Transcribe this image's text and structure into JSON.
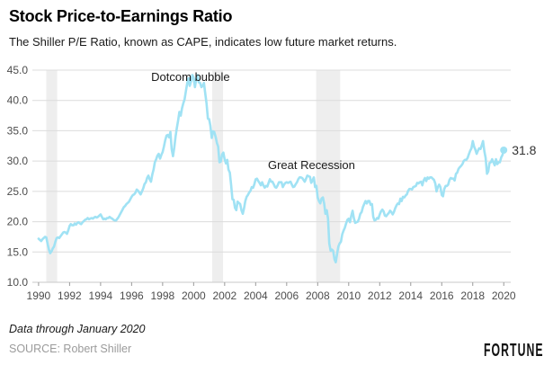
{
  "header": {
    "title": "Stock Price-to-Earnings Ratio",
    "subtitle": "The Shiller P/E Ratio, known as CAPE, indicates low future market returns."
  },
  "footer": {
    "note": "Data through January 2020",
    "source": "SOURCE: Robert Shiller",
    "brand": "FORTUNE"
  },
  "chart_data": {
    "type": "line",
    "title": "Stock Price-to-Earnings Ratio",
    "series_name": "Shiller P/E (CAPE)",
    "xlabel": "",
    "ylabel": "",
    "x_start_year": 1990,
    "x_step_months": 1,
    "x_end_label_value": 31.8,
    "values": [
      17.2,
      17.0,
      16.8,
      17.1,
      17.3,
      17.5,
      17.4,
      16.3,
      15.4,
      14.8,
      15.1,
      15.6,
      15.9,
      16.7,
      17.3,
      17.4,
      17.3,
      17.6,
      17.9,
      18.2,
      18.3,
      18.2,
      18.0,
      18.6,
      19.3,
      19.6,
      19.4,
      19.4,
      19.7,
      19.5,
      19.8,
      19.9,
      19.7,
      19.6,
      19.9,
      20.1,
      20.3,
      20.4,
      20.6,
      20.4,
      20.5,
      20.6,
      20.5,
      20.7,
      20.8,
      20.7,
      20.8,
      21.0,
      21.2,
      20.8,
      20.4,
      20.5,
      20.4,
      20.6,
      20.6,
      20.8,
      20.6,
      20.5,
      20.3,
      20.2,
      20.2,
      20.5,
      20.8,
      21.2,
      21.6,
      22.0,
      22.4,
      22.6,
      22.9,
      23.1,
      23.3,
      23.7,
      24.1,
      24.4,
      24.5,
      24.8,
      25.3,
      25.1,
      24.8,
      24.5,
      25.0,
      25.5,
      26.2,
      26.5,
      27.2,
      27.6,
      27.0,
      26.6,
      27.8,
      28.6,
      29.8,
      30.3,
      30.9,
      31.2,
      30.4,
      31.0,
      31.5,
      32.4,
      33.4,
      34.2,
      34.3,
      33.9,
      34.8,
      32.0,
      30.8,
      32.2,
      34.0,
      35.5,
      36.7,
      38.1,
      37.5,
      38.7,
      39.5,
      40.2,
      41.5,
      42.8,
      43.7,
      42.4,
      43.2,
      44.2,
      43.8,
      42.2,
      43.5,
      44.2,
      43.0,
      42.9,
      42.2,
      42.4,
      42.9,
      41.1,
      39.5,
      37.0,
      36.9,
      35.8,
      33.8,
      34.9,
      34.8,
      34.0,
      33.0,
      32.4,
      29.8,
      29.9,
      31.1,
      31.4,
      30.3,
      29.6,
      30.2,
      28.6,
      28.1,
      26.1,
      23.7,
      23.6,
      22.3,
      21.9,
      23.3,
      23.1,
      22.9,
      21.9,
      21.3,
      22.2,
      23.4,
      24.1,
      24.4,
      24.8,
      25.1,
      25.7,
      25.6,
      26.2,
      27.0,
      27.1,
      26.7,
      26.4,
      26.0,
      26.5,
      26.0,
      25.6,
      25.9,
      25.8,
      26.4,
      27.0,
      26.6,
      26.6,
      26.2,
      25.7,
      25.6,
      26.0,
      26.5,
      26.5,
      26.5,
      25.7,
      26.1,
      26.4,
      26.5,
      26.4,
      26.5,
      26.6,
      26.1,
      25.7,
      25.8,
      26.2,
      26.5,
      27.0,
      27.3,
      27.3,
      27.2,
      26.9,
      26.6,
      27.1,
      27.6,
      27.5,
      27.4,
      26.4,
      26.8,
      27.3,
      25.7,
      25.9,
      24.0,
      23.4,
      23.0,
      23.8,
      24.0,
      23.0,
      21.3,
      21.9,
      20.5,
      16.4,
      15.2,
      15.4,
      15.2,
      13.8,
      13.3,
      14.7,
      15.9,
      16.4,
      16.7,
      17.9,
      18.5,
      19.0,
      19.7,
      20.3,
      20.5,
      19.9,
      21.0,
      21.8,
      20.6,
      19.8,
      19.9,
      20.0,
      20.5,
      21.3,
      21.6,
      22.4,
      22.9,
      23.4,
      23.0,
      23.4,
      23.4,
      22.8,
      22.9,
      20.8,
      20.2,
      20.3,
      20.6,
      20.5,
      21.2,
      21.7,
      22.0,
      21.7,
      21.0,
      20.9,
      21.2,
      21.4,
      21.8,
      21.6,
      21.2,
      21.6,
      22.2,
      22.7,
      23.0,
      22.9,
      23.8,
      23.4,
      24.1,
      24.0,
      24.3,
      24.5,
      25.1,
      25.4,
      25.4,
      25.3,
      25.7,
      25.8,
      25.9,
      26.4,
      26.3,
      26.5,
      26.6,
      26.0,
      26.8,
      27.2,
      26.7,
      27.3,
      27.1,
      27.3,
      27.3,
      27.1,
      26.9,
      26.3,
      25.0,
      25.7,
      26.1,
      25.7,
      24.4,
      24.2,
      25.4,
      25.9,
      25.9,
      26.1,
      26.9,
      27.2,
      27.1,
      27.1,
      26.8,
      27.9,
      28.1,
      28.7,
      29.0,
      29.2,
      29.5,
      30.0,
      30.2,
      30.2,
      30.5,
      31.1,
      31.7,
      32.1,
      33.3,
      32.4,
      31.9,
      31.2,
      31.7,
      32.1,
      32.0,
      32.6,
      33.3,
      31.6,
      30.5,
      27.9,
      28.3,
      29.7,
      29.8,
      30.3,
      29.8,
      29.3,
      30.3,
      29.5,
      29.8,
      29.8,
      30.6,
      31.0,
      31.8
    ],
    "xlim": [
      1989.6,
      2020.45
    ],
    "ylim": [
      10,
      45
    ],
    "grid": "horizontal",
    "legend": "none",
    "y_ticks": [
      {
        "v": 10,
        "label": "10.0"
      },
      {
        "v": 15,
        "label": "15.0"
      },
      {
        "v": 20,
        "label": "20.0"
      },
      {
        "v": 25,
        "label": "25.0"
      },
      {
        "v": 30,
        "label": "30.0"
      },
      {
        "v": 35,
        "label": "35.0"
      },
      {
        "v": 40,
        "label": "40.0"
      },
      {
        "v": 45,
        "label": "45.0"
      }
    ],
    "x_ticks": [
      {
        "v": 1990,
        "label": "1990"
      },
      {
        "v": 1992,
        "label": "1992"
      },
      {
        "v": 1994,
        "label": "1994"
      },
      {
        "v": 1996,
        "label": "1996"
      },
      {
        "v": 1998,
        "label": "1998"
      },
      {
        "v": 2000,
        "label": "2000"
      },
      {
        "v": 2002,
        "label": "2002"
      },
      {
        "v": 2004,
        "label": "2004"
      },
      {
        "v": 2006,
        "label": "2006"
      },
      {
        "v": 2008,
        "label": "2008"
      },
      {
        "v": 2010,
        "label": "2010"
      },
      {
        "v": 2012,
        "label": "2012"
      },
      {
        "v": 2014,
        "label": "2014"
      },
      {
        "v": 2016,
        "label": "2016"
      },
      {
        "v": 2018,
        "label": "2018"
      },
      {
        "v": 2020,
        "label": "2020"
      }
    ],
    "recession_bands": [
      [
        1990.5,
        1991.2
      ],
      [
        2001.2,
        2001.9
      ],
      [
        2007.9,
        2009.45
      ]
    ],
    "annotations": [
      {
        "name": "dotcom-bubble",
        "text": "Dotcom bubble",
        "x": 1999.8,
        "y": 43.2
      },
      {
        "name": "great-recession",
        "text": "Great Recession",
        "x": 2007.6,
        "y": 28.7
      }
    ],
    "end_label": "31.8",
    "colors": {
      "line": "#a0e2f4",
      "band": "#eeeeee",
      "grid": "#dcdcdc",
      "axis": "#c9c9c9",
      "tick_mark": "#9a9a9a"
    }
  }
}
